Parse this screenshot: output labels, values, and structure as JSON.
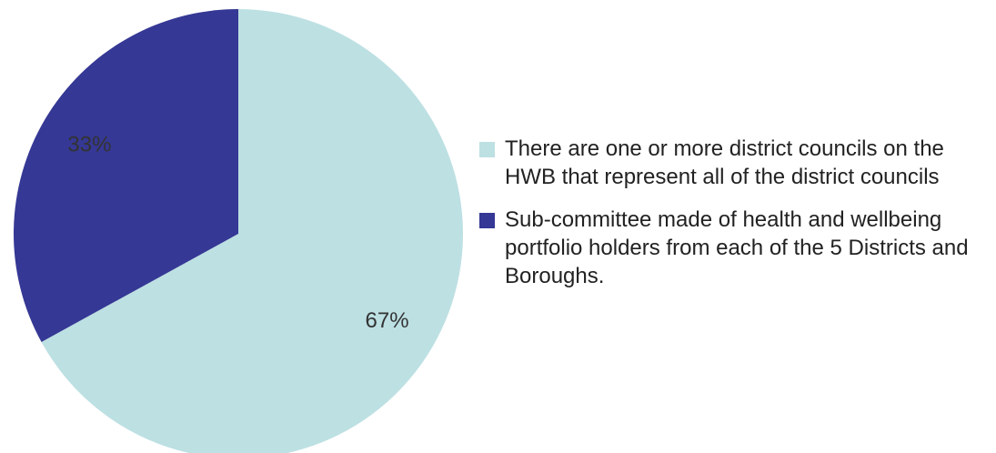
{
  "chart_data": {
    "type": "pie",
    "categories": [
      "There are one or more district councils on the HWB that represent all of the district councils",
      "Sub-committee made of health and wellbeing portfolio holders from each of the 5 Districts and Boroughs."
    ],
    "values": [
      67,
      33
    ],
    "data_labels": [
      "67%",
      "33%"
    ],
    "colors": [
      "#bde0e3",
      "#353894"
    ],
    "legend_position": "right",
    "start_angle": "12 o'clock",
    "direction": "clockwise"
  }
}
